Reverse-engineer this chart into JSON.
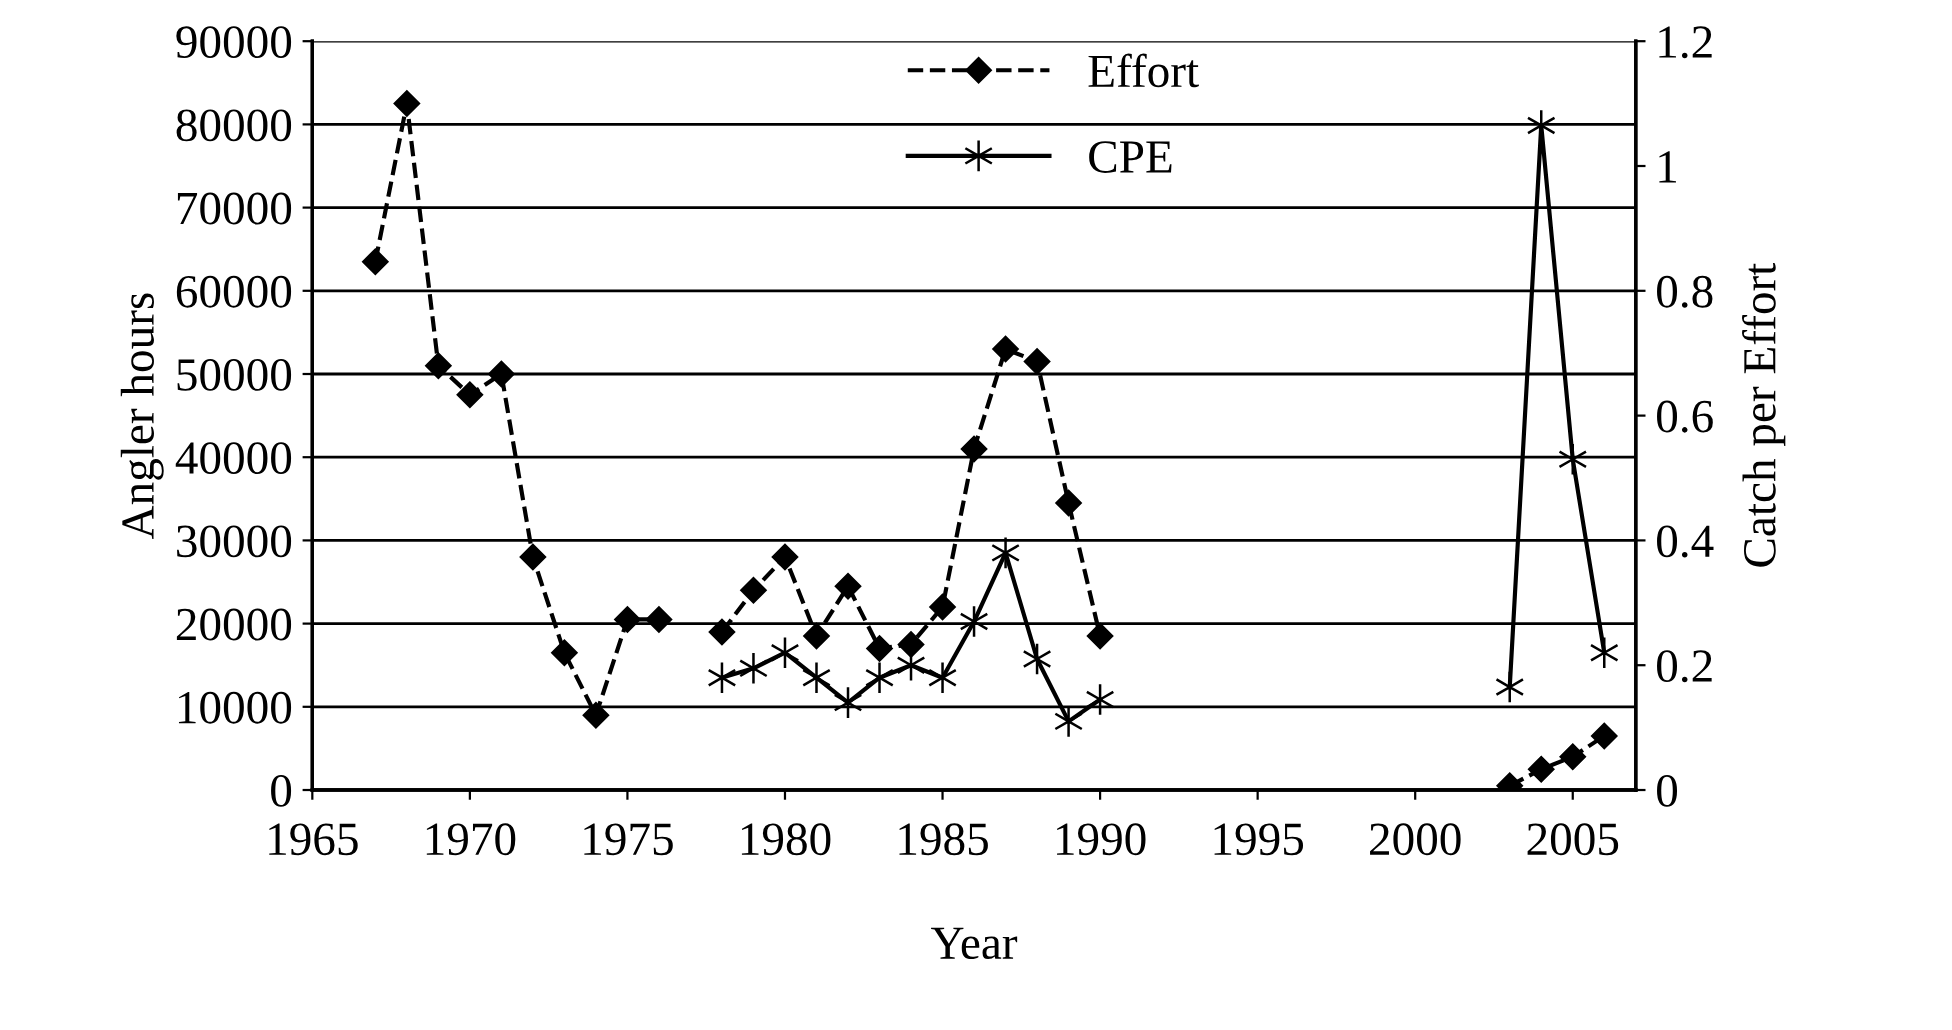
{
  "chart_data": {
    "type": "line",
    "xlabel": "Year",
    "ylabel": "Angler hours",
    "y2label": "Catch per Effort",
    "x": [
      1967,
      1968,
      1969,
      1970,
      1971,
      1972,
      1973,
      1974,
      1975,
      1976,
      1977,
      1978,
      1979,
      1980,
      1981,
      1982,
      1983,
      1984,
      1985,
      1986,
      1987,
      1988,
      1989,
      1990,
      1991,
      2003,
      2004,
      2005,
      2006
    ],
    "series": [
      {
        "name": "Effort",
        "color": "#000000",
        "marker": "diamond",
        "line_style": "dashed",
        "values": [
          63500,
          82500,
          51000,
          47500,
          50000,
          28000,
          16500,
          9000,
          20500,
          20500,
          null,
          19000,
          24000,
          28000,
          18500,
          24500,
          17000,
          17500,
          22000,
          41000,
          53000,
          51500,
          34500,
          18500,
          null,
          500,
          2500,
          4000,
          6500
        ]
      },
      {
        "name": "CPE",
        "color": "#000000",
        "marker": "cross",
        "line_style": "solid",
        "axis": "y2",
        "values": [
          null,
          null,
          null,
          null,
          null,
          null,
          null,
          null,
          null,
          null,
          null,
          0.18,
          0.195,
          0.22,
          0.18,
          0.14,
          0.18,
          0.2,
          0.18,
          0.27,
          0.38,
          0.21,
          0.11,
          0.145,
          null,
          0.165,
          1.065,
          0.53,
          0.22
        ]
      }
    ],
    "xlim": [
      1965,
      2007
    ],
    "xticks": [
      1965,
      1970,
      1975,
      1980,
      1985,
      1990,
      1995,
      2000,
      2005
    ],
    "ylim": [
      0,
      90000
    ],
    "yticks": [
      0,
      10000,
      20000,
      30000,
      40000,
      50000,
      60000,
      70000,
      80000,
      90000
    ],
    "y2lim": [
      0,
      1.2
    ],
    "y2ticks": [
      {
        "value": 0,
        "label": "0"
      },
      {
        "value": 0.2,
        "label": "0.2"
      },
      {
        "value": 0.4,
        "label": "0.4"
      },
      {
        "value": 0.6,
        "label": "0.6"
      },
      {
        "value": 0.8,
        "label": "0.8"
      },
      {
        "value": 1.0,
        "label": "1"
      },
      {
        "value": 1.2,
        "label": "1.2"
      }
    ],
    "grid": "y",
    "legend": "top"
  }
}
